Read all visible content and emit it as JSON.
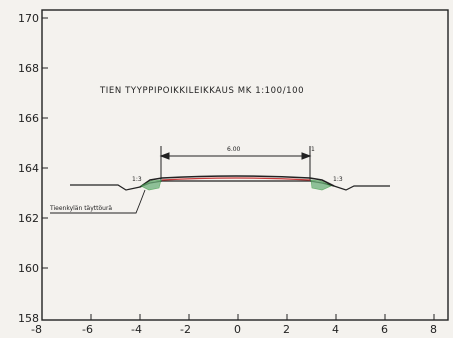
{
  "title": "TIEN TYYPPIPOIKKILEIKKAUS   MK 1:100/100",
  "y_ticks": [
    "170",
    "168",
    "166",
    "164",
    "162",
    "160",
    "158"
  ],
  "x_ticks": [
    "-8",
    "-6",
    "-4",
    "-2",
    "0",
    "2",
    "4",
    "6",
    "8"
  ],
  "width_label": "6.00",
  "width_note": "1",
  "left_slope_label": "1:3",
  "right_slope_label": "1:3",
  "ground_label": "Tieenkylän täyttöurä",
  "colors": {
    "ink": "#222222",
    "paper": "#f4f2ee",
    "pavement": "#c83a3a",
    "shoulder": "#3c9a45",
    "grid": "#444444"
  }
}
